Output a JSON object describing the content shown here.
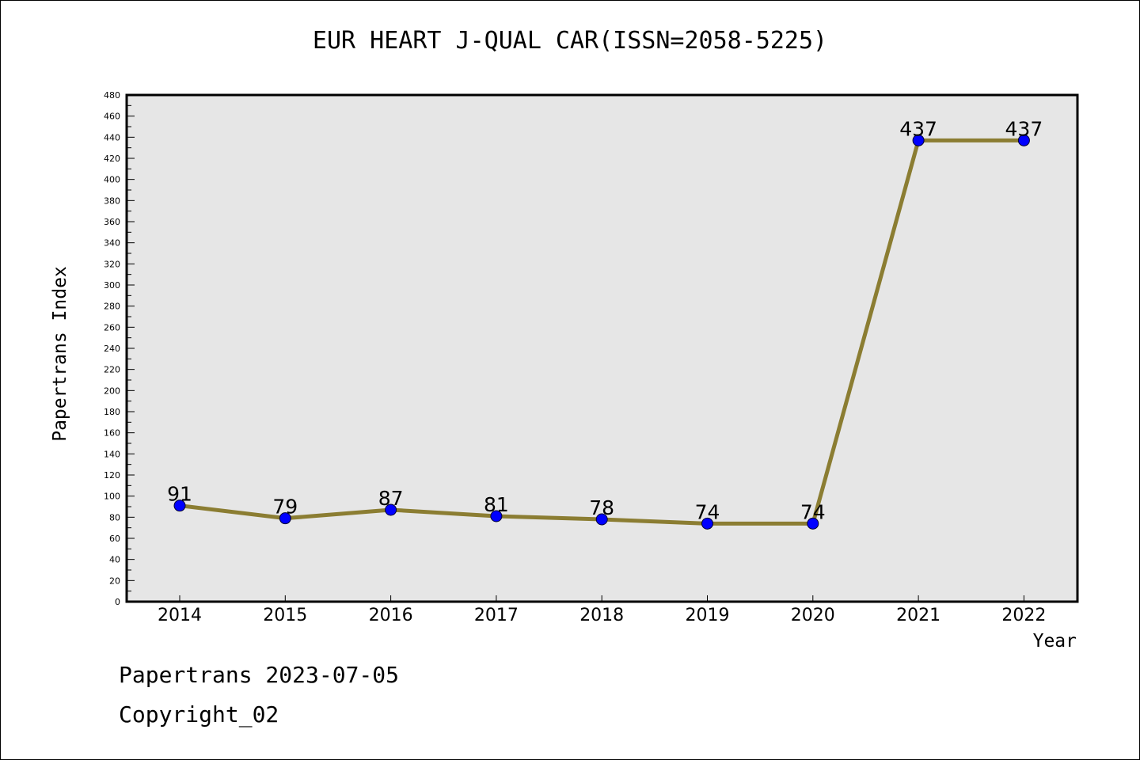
{
  "chart_data": {
    "type": "line",
    "title": "EUR HEART J-QUAL CAR(ISSN=2058-5225)",
    "xlabel": "Year",
    "ylabel": "Papertrans Index",
    "categories": [
      "2014",
      "2015",
      "2016",
      "2017",
      "2018",
      "2019",
      "2020",
      "2021",
      "2022"
    ],
    "series": [
      {
        "values": [
          91,
          79,
          87,
          81,
          78,
          74,
          74,
          437,
          437
        ]
      }
    ],
    "ylim": [
      0,
      480
    ],
    "ytick_step": 20,
    "grid": false,
    "colors": {
      "line": "#8b7d32",
      "marker": "#0000ff",
      "plot_bg": "#e6e6e6"
    }
  },
  "footer": {
    "line1": "Papertrans 2023-07-05",
    "line2": "Copyright_02"
  }
}
